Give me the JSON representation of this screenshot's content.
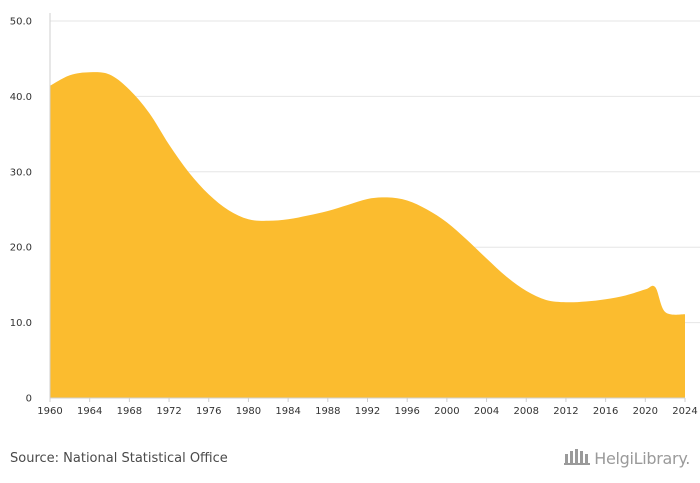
{
  "chart_data": {
    "type": "area",
    "title": "",
    "xlabel": "",
    "ylabel": "",
    "xlim": [
      1960,
      2024
    ],
    "ylim": [
      0,
      50
    ],
    "y_ticks": [
      0,
      10,
      20,
      30,
      40,
      50
    ],
    "y_tick_labels": [
      "0",
      "10.0",
      "20.0",
      "30.0",
      "40.0",
      "50.0"
    ],
    "x_ticks": [
      1960,
      1964,
      1968,
      1972,
      1976,
      1980,
      1984,
      1988,
      1992,
      1996,
      2000,
      2004,
      2008,
      2012,
      2016,
      2020,
      2024
    ],
    "x_tick_labels": [
      "1960",
      "1964",
      "1968",
      "1972",
      "1976",
      "1980",
      "1984",
      "1988",
      "1992",
      "1996",
      "2000",
      "2004",
      "2008",
      "2012",
      "2016",
      "2020",
      "2024"
    ],
    "series": [
      {
        "name": "value",
        "color": "#fbbc2f",
        "x": [
          1960,
          1962,
          1964,
          1966,
          1968,
          1970,
          1972,
          1974,
          1976,
          1978,
          1980,
          1982,
          1984,
          1986,
          1988,
          1990,
          1992,
          1994,
          1996,
          1998,
          2000,
          2002,
          2004,
          2006,
          2008,
          2010,
          2012,
          2014,
          2016,
          2018,
          2020,
          2021,
          2022,
          2024
        ],
        "values": [
          41.4,
          42.8,
          43.2,
          42.9,
          40.9,
          37.8,
          33.6,
          29.9,
          27.0,
          24.9,
          23.7,
          23.5,
          23.7,
          24.2,
          24.8,
          25.6,
          26.4,
          26.6,
          26.2,
          25.0,
          23.3,
          21.0,
          18.5,
          16.1,
          14.2,
          13.0,
          12.7,
          12.8,
          13.1,
          13.6,
          14.4,
          14.7,
          11.4,
          11.1
        ]
      }
    ]
  },
  "footer": {
    "source": "Source: National Statistical Office",
    "brand": "HelgiLibrary."
  },
  "colors": {
    "area": "#fbbc2f",
    "grid": "#e6e6e6",
    "axis": "#cfcfcf",
    "text": "#333333",
    "brand": "#9a9a9a"
  }
}
